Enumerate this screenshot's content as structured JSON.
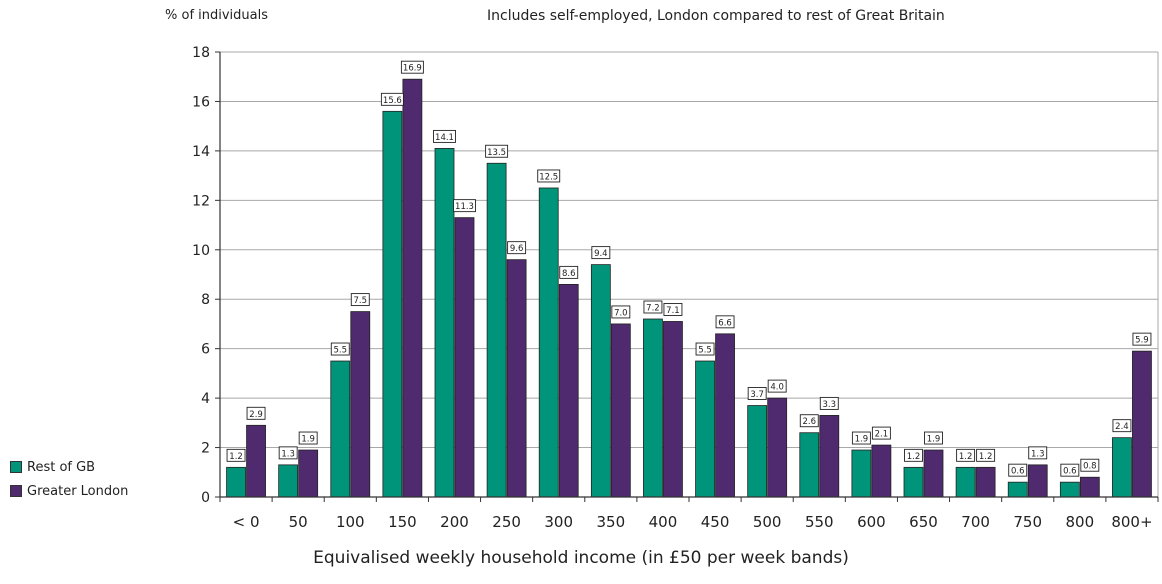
{
  "chart_data": {
    "type": "bar",
    "title": "Includes self-employed, London compared to rest of Great Britain",
    "ylabel": "% of individuals",
    "xlabel": "Equivalised weekly household income (in £50 per week bands)",
    "ylim": [
      0,
      18
    ],
    "yticks": [
      0,
      2,
      4,
      6,
      8,
      10,
      12,
      14,
      16,
      18
    ],
    "grid": true,
    "legend_placement": "left",
    "categories": [
      "< 0",
      "50",
      "100",
      "150",
      "200",
      "250",
      "300",
      "350",
      "400",
      "450",
      "500",
      "550",
      "600",
      "650",
      "700",
      "750",
      "800",
      "800+"
    ],
    "series": [
      {
        "name": "Rest of GB",
        "color": "#00957a",
        "values": [
          1.2,
          1.3,
          5.5,
          15.6,
          14.1,
          13.5,
          12.5,
          9.4,
          7.2,
          5.5,
          3.7,
          2.6,
          1.9,
          1.2,
          1.2,
          0.6,
          0.6,
          2.4
        ],
        "labels": [
          "1.2",
          "1.3",
          "5.5",
          "15.6",
          "14.1",
          "13.5",
          "12.5",
          "9.4",
          "7.2",
          "5.5",
          "3.7",
          "2.6",
          "1.9",
          "1.2",
          "1.2",
          "0.6",
          "0.6",
          "2.4"
        ]
      },
      {
        "name": "Greater London",
        "color": "#4f2a6e",
        "values": [
          2.9,
          1.9,
          7.5,
          16.9,
          11.3,
          9.6,
          8.6,
          7.0,
          7.1,
          6.6,
          4.0,
          3.3,
          2.1,
          1.9,
          1.2,
          1.3,
          0.8,
          5.9
        ],
        "labels": [
          "2.9",
          "1.9",
          "7.5",
          "16.9",
          "11.3",
          "9.6",
          "8.6",
          "7.0",
          "7.1",
          "6.6",
          "4.0",
          "3.3",
          "2.1",
          "1.9",
          "1.2",
          "1.3",
          "0.8",
          "5.9"
        ]
      }
    ]
  }
}
